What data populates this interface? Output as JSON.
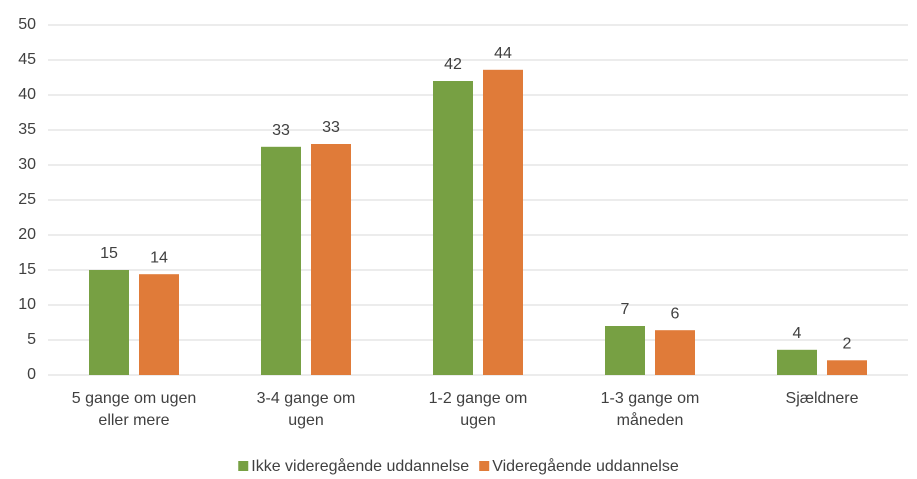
{
  "chart_data": {
    "type": "bar",
    "categories": [
      "5 gange om ugen eller mere",
      "3-4 gange om ugen",
      "1-2 gange om ugen",
      "1-3 gange om måneden",
      "Sjældnere"
    ],
    "series": [
      {
        "name": "Ikke videregående uddannelse",
        "color": "#77a043",
        "values": [
          15,
          32.6,
          42,
          7,
          3.6
        ],
        "value_labels": [
          "15",
          "33",
          "42",
          "7",
          "4"
        ]
      },
      {
        "name": "Videregående uddannelse",
        "color": "#e07b39",
        "values": [
          14.4,
          33,
          43.6,
          6.4,
          2.1
        ],
        "value_labels": [
          "14",
          "33",
          "44",
          "6",
          "2"
        ]
      }
    ],
    "ylim": [
      0,
      50
    ],
    "yticks": [
      0,
      5,
      10,
      15,
      20,
      25,
      30,
      35,
      40,
      45,
      50
    ],
    "grid": true,
    "legend": "bottom"
  }
}
